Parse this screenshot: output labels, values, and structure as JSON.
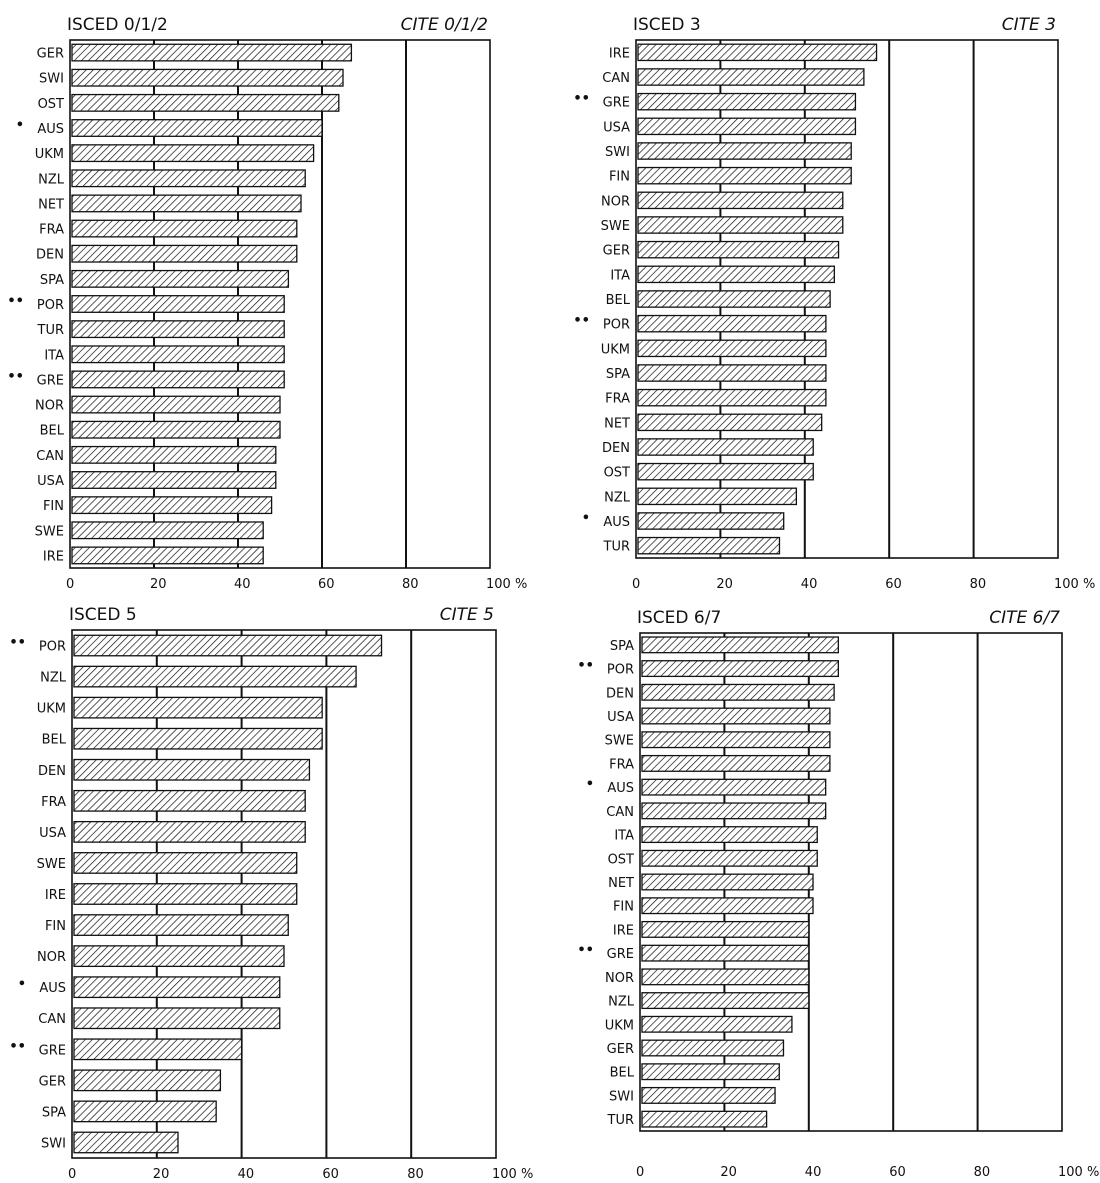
{
  "chart_data": [
    {
      "type": "bar",
      "orientation": "horizontal",
      "title": "ISCED 0/1/2",
      "title_alt": "CITE 0/1/2",
      "xlim": [
        0,
        100
      ],
      "xticks": [
        "0",
        "20",
        "40",
        "60",
        "80",
        "100 %"
      ],
      "categories": [
        "GER",
        "SWI",
        "OST",
        "AUS",
        "UKM",
        "NZL",
        "NET",
        "FRA",
        "DEN",
        "SPA",
        "POR",
        "TUR",
        "ITA",
        "GRE",
        "NOR",
        "BEL",
        "CAN",
        "USA",
        "FIN",
        "SWE",
        "IRE"
      ],
      "markers": [
        "",
        "",
        "",
        "•",
        "",
        "",
        "",
        "",
        "",
        "",
        "••",
        "",
        "",
        "••",
        "",
        "",
        "",
        "",
        "",
        "",
        ""
      ],
      "values": [
        67,
        65,
        64,
        60,
        58,
        56,
        55,
        54,
        54,
        52,
        51,
        51,
        51,
        51,
        50,
        50,
        49,
        49,
        48,
        46,
        46
      ]
    },
    {
      "type": "bar",
      "orientation": "horizontal",
      "title": "ISCED 3",
      "title_alt": "CITE 3",
      "xlim": [
        0,
        100
      ],
      "xticks": [
        "0",
        "20",
        "40",
        "60",
        "80",
        "100 %"
      ],
      "categories": [
        "IRE",
        "CAN",
        "GRE",
        "USA",
        "SWI",
        "FIN",
        "NOR",
        "SWE",
        "GER",
        "ITA",
        "BEL",
        "POR",
        "UKM",
        "SPA",
        "FRA",
        "NET",
        "DEN",
        "OST",
        "NZL",
        "AUS",
        "TUR"
      ],
      "markers": [
        "",
        "",
        "••",
        "",
        "",
        "",
        "",
        "",
        "",
        "",
        "",
        "••",
        "",
        "",
        "",
        "",
        "",
        "",
        "",
        "•",
        ""
      ],
      "values": [
        57,
        54,
        52,
        52,
        51,
        51,
        49,
        49,
        48,
        47,
        46,
        45,
        45,
        45,
        45,
        44,
        42,
        42,
        38,
        35,
        34
      ]
    },
    {
      "type": "bar",
      "orientation": "horizontal",
      "title": "ISCED 5",
      "title_alt": "CITE 5",
      "xlim": [
        0,
        100
      ],
      "xticks": [
        "0",
        "20",
        "40",
        "60",
        "80",
        "100 %"
      ],
      "categories": [
        "POR",
        "NZL",
        "UKM",
        "BEL",
        "DEN",
        "FRA",
        "USA",
        "SWE",
        "IRE",
        "FIN",
        "NOR",
        "AUS",
        "CAN",
        "GRE",
        "GER",
        "SPA",
        "SWI"
      ],
      "markers": [
        "••",
        "",
        "",
        "",
        "",
        "",
        "",
        "",
        "",
        "",
        "",
        "•",
        "",
        "••",
        "",
        "",
        ""
      ],
      "values": [
        73,
        67,
        59,
        59,
        56,
        55,
        55,
        53,
        53,
        51,
        50,
        49,
        49,
        40,
        35,
        34,
        25
      ]
    },
    {
      "type": "bar",
      "orientation": "horizontal",
      "title": "ISCED 6/7",
      "title_alt": "CITE 6/7",
      "xlim": [
        0,
        100
      ],
      "xticks": [
        "0",
        "20",
        "40",
        "60",
        "80",
        "100 %"
      ],
      "categories": [
        "SPA",
        "POR",
        "DEN",
        "USA",
        "SWE",
        "FRA",
        "AUS",
        "CAN",
        "ITA",
        "OST",
        "NET",
        "FIN",
        "IRE",
        "GRE",
        "NOR",
        "NZL",
        "UKM",
        "GER",
        "BEL",
        "SWI",
        "TUR"
      ],
      "markers": [
        "",
        "••",
        "",
        "",
        "",
        "",
        "•",
        "",
        "",
        "",
        "",
        "",
        "",
        "••",
        "",
        "",
        "",
        "",
        "",
        "",
        ""
      ],
      "values": [
        47,
        47,
        46,
        45,
        45,
        45,
        44,
        44,
        42,
        42,
        41,
        41,
        40,
        40,
        40,
        40,
        36,
        34,
        33,
        32,
        30
      ]
    }
  ]
}
